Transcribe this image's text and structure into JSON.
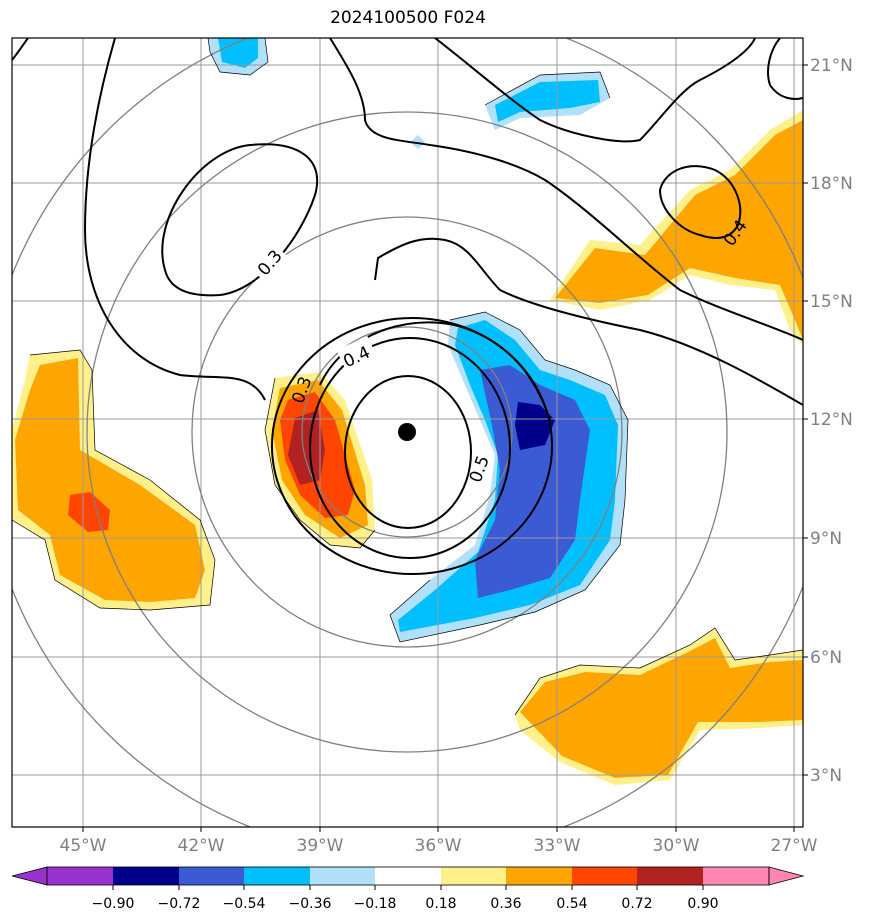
{
  "title": "2024100500 F024",
  "map": {
    "lon_range": [
      -47,
      -27
    ],
    "lat_range": [
      2,
      22
    ],
    "center": {
      "lon": -36.8,
      "lat": 11.7
    },
    "lat_ticks": [
      {
        "value": 3,
        "label": "3°N"
      },
      {
        "value": 6,
        "label": "6°N"
      },
      {
        "value": 9,
        "label": "9°N"
      },
      {
        "value": 12,
        "label": "12°N"
      },
      {
        "value": 15,
        "label": "15°N"
      },
      {
        "value": 18,
        "label": "18°N"
      },
      {
        "value": 21,
        "label": "21°N"
      }
    ],
    "lon_ticks": [
      {
        "value": -45,
        "label": "45°W"
      },
      {
        "value": -42,
        "label": "42°W"
      },
      {
        "value": -39,
        "label": "39°W"
      },
      {
        "value": -36,
        "label": "36°W"
      },
      {
        "value": -33,
        "label": "33°W"
      },
      {
        "value": -30,
        "label": "30°W"
      },
      {
        "value": -27,
        "label": "27°W"
      }
    ],
    "contour_labels": [
      "0.3",
      "0.4",
      "0.3",
      "0.5",
      "0.4"
    ]
  },
  "colorbar": {
    "ticks": [
      "−0.90",
      "−0.72",
      "−0.54",
      "−0.36",
      "−0.18",
      "0.18",
      "0.36",
      "0.54",
      "0.72",
      "0.90"
    ],
    "colors": [
      "#9932cc",
      "#00008b",
      "#3a5bd4",
      "#00bfff",
      "#b0e0fa",
      "#ffffff",
      "#fff08a",
      "#ffa500",
      "#ff4500",
      "#b22222",
      "#ff85b3"
    ]
  }
}
